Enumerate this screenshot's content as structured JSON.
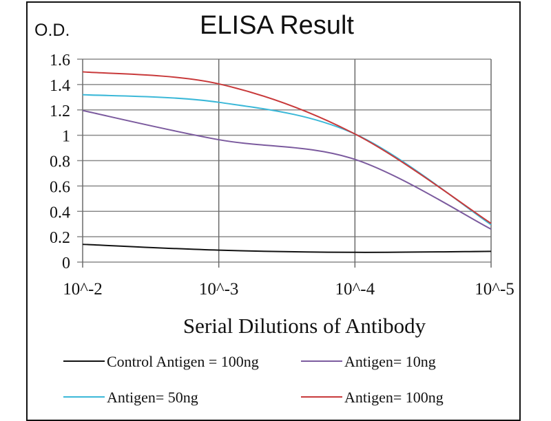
{
  "chart_data": {
    "type": "line",
    "title": "ELISA Result",
    "ylabel": "O.D.",
    "xlabel": "Serial Dilutions  of Antibody",
    "categories": [
      "10^-2",
      "10^-3",
      "10^-4",
      "10^-5"
    ],
    "ylim": [
      0,
      1.6
    ],
    "yticks": [
      "0",
      "0.2",
      "0.4",
      "0.6",
      "0.8",
      "1",
      "1.2",
      "1.4",
      "1.6"
    ],
    "grid": true,
    "smooth": true,
    "legend_position": "bottom",
    "series": [
      {
        "name": "Control Antigen = 100ng",
        "color": "#111111",
        "values": [
          0.14,
          0.094,
          0.077,
          0.085
        ]
      },
      {
        "name": "Antigen= 10ng",
        "color": "#7b5a9e",
        "values": [
          1.195,
          0.965,
          0.81,
          0.26
        ]
      },
      {
        "name": "Antigen= 50ng",
        "color": "#3bb8d8",
        "values": [
          1.32,
          1.26,
          1.01,
          0.295
        ]
      },
      {
        "name": "Antigen= 100ng",
        "color": "#c8393a",
        "values": [
          1.5,
          1.405,
          1.01,
          0.305
        ]
      }
    ]
  }
}
